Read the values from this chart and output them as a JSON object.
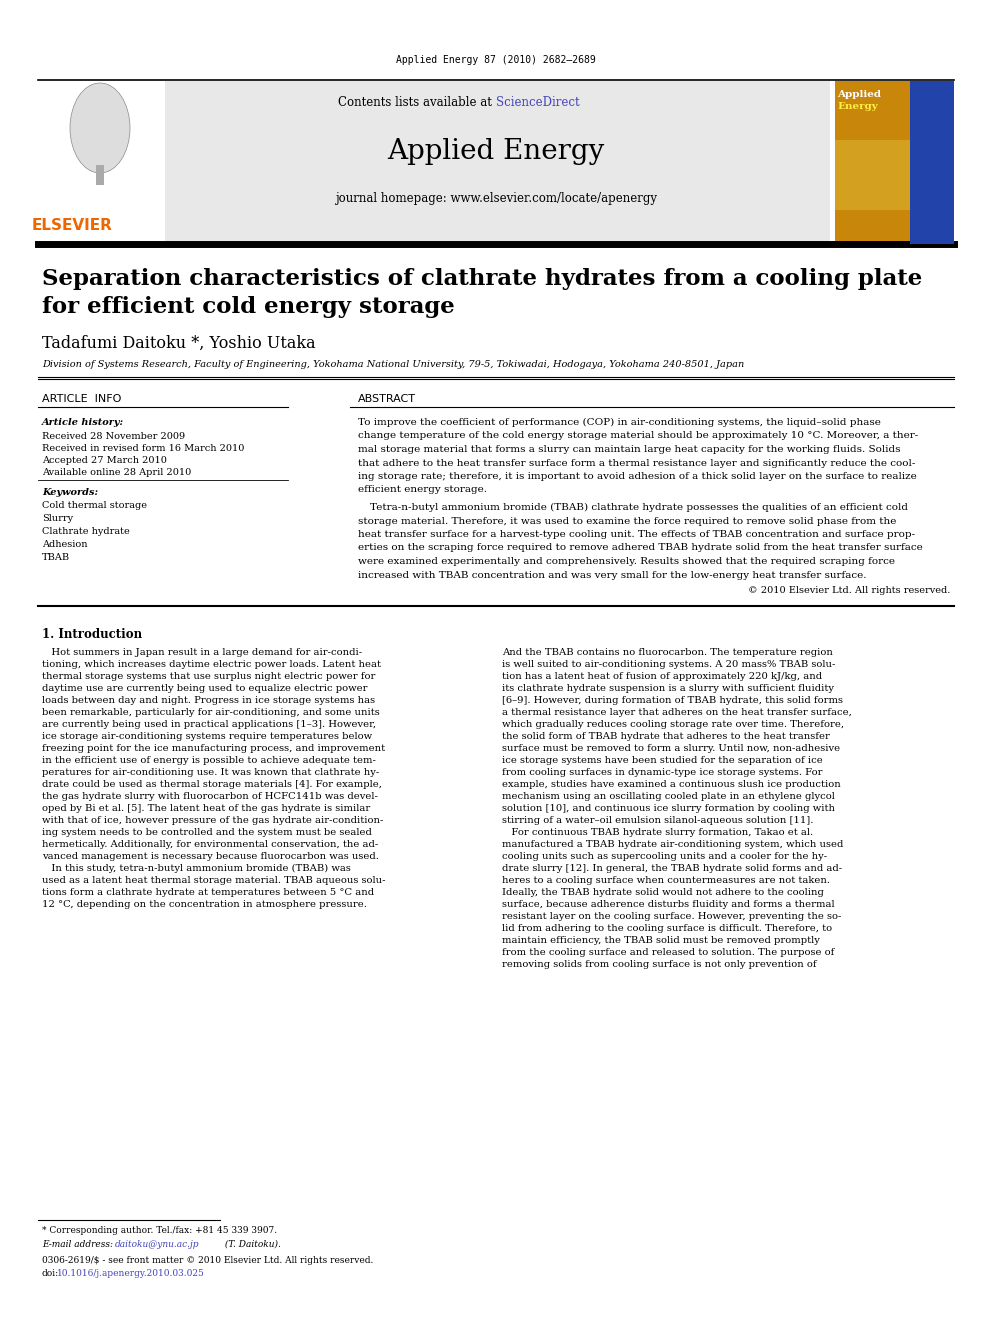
{
  "page_width": 9.92,
  "page_height": 13.23,
  "bg_color": "#ffffff",
  "top_citation": "Applied Energy 87 (2010) 2682–2689",
  "header_bg": "#e8e8e8",
  "header_contents": "Contents lists available at ScienceDirect",
  "header_journal": "Applied Energy",
  "header_homepage": "journal homepage: www.elsevier.com/locate/apenergy",
  "sciencedirect_color": "#4444bb",
  "elsevier_color": "#ee6600",
  "elsevier_text": "ELSEVIER",
  "article_title_line1": "Separation characteristics of clathrate hydrates from a cooling plate",
  "article_title_line2": "for efficient cold energy storage",
  "authors": "Tadafumi Daitoku *, Yoshio Utaka",
  "affiliation": "Division of Systems Research, Faculty of Engineering, Yokohama National University, 79-5, Tokiwadai, Hodogaya, Yokohama 240-8501, Japan",
  "article_info_header": "ARTICLE  INFO",
  "abstract_header": "ABSTRACT",
  "article_history_label": "Article history:",
  "received1": "Received 28 November 2009",
  "received2": "Received in revised form 16 March 2010",
  "accepted": "Accepted 27 March 2010",
  "available": "Available online 28 April 2010",
  "keywords_label": "Keywords:",
  "keywords": [
    "Cold thermal storage",
    "Slurry",
    "Clathrate hydrate",
    "Adhesion",
    "TBAB"
  ],
  "abstract_p1": "To improve the coefficient of performance (COP) in air-conditioning systems, the liquid–solid phase\nchange temperature of the cold energy storage material should be approximately 10 °C. Moreover, a ther-\nmal storage material that forms a slurry can maintain large heat capacity for the working fluids. Solids\nthat adhere to the heat transfer surface form a thermal resistance layer and significantly reduce the cool-\ning storage rate; therefore, it is important to avoid adhesion of a thick solid layer on the surface to realize\nefficient energy storage.",
  "abstract_p2": "Tetra-n-butyl ammonium bromide (TBAB) clathrate hydrate possesses the qualities of an efficient cold\nstorage material. Therefore, it was used to examine the force required to remove solid phase from the\nheat transfer surface for a harvest-type cooling unit. The effects of TBAB concentration and surface prop-\nerties on the scraping force required to remove adhered TBAB hydrate solid from the heat transfer surface\nwere examined experimentally and comprehensively. Results showed that the required scraping force\nincreased with TBAB concentration and was very small for the low-energy heat transfer surface.",
  "abstract_copyright": "© 2010 Elsevier Ltd. All rights reserved.",
  "section1_header": "1. Introduction",
  "section1_col1_lines": [
    "   Hot summers in Japan result in a large demand for air-condi-",
    "tioning, which increases daytime electric power loads. Latent heat",
    "thermal storage systems that use surplus night electric power for",
    "daytime use are currently being used to equalize electric power",
    "loads between day and night. Progress in ice storage systems has",
    "been remarkable, particularly for air-conditioning, and some units",
    "are currently being used in practical applications [1–3]. However,",
    "ice storage air-conditioning systems require temperatures below",
    "freezing point for the ice manufacturing process, and improvement",
    "in the efficient use of energy is possible to achieve adequate tem-",
    "peratures for air-conditioning use. It was known that clathrate hy-",
    "drate could be used as thermal storage materials [4]. For example,",
    "the gas hydrate slurry with fluorocarbon of HCFC141b was devel-",
    "oped by Bi et al. [5]. The latent heat of the gas hydrate is similar",
    "with that of ice, however pressure of the gas hydrate air-condition-",
    "ing system needs to be controlled and the system must be sealed",
    "hermetically. Additionally, for environmental conservation, the ad-",
    "vanced management is necessary because fluorocarbon was used.",
    "   In this study, tetra-n-butyl ammonium bromide (TBAB) was",
    "used as a latent heat thermal storage material. TBAB aqueous solu-",
    "tions form a clathrate hydrate at temperatures between 5 °C and",
    "12 °C, depending on the concentration in atmosphere pressure."
  ],
  "section1_col2_lines": [
    "And the TBAB contains no fluorocarbon. The temperature region",
    "is well suited to air-conditioning systems. A 20 mass% TBAB solu-",
    "tion has a latent heat of fusion of approximately 220 kJ/kg, and",
    "its clathrate hydrate suspension is a slurry with sufficient fluidity",
    "[6–9]. However, during formation of TBAB hydrate, this solid forms",
    "a thermal resistance layer that adheres on the heat transfer surface,",
    "which gradually reduces cooling storage rate over time. Therefore,",
    "the solid form of TBAB hydrate that adheres to the heat transfer",
    "surface must be removed to form a slurry. Until now, non-adhesive",
    "ice storage systems have been studied for the separation of ice",
    "from cooling surfaces in dynamic-type ice storage systems. For",
    "example, studies have examined a continuous slush ice production",
    "mechanism using an oscillating cooled plate in an ethylene glycol",
    "solution [10], and continuous ice slurry formation by cooling with",
    "stirring of a water–oil emulsion silanol-aqueous solution [11].",
    "   For continuous TBAB hydrate slurry formation, Takao et al.",
    "manufactured a TBAB hydrate air-conditioning system, which used",
    "cooling units such as supercooling units and a cooler for the hy-",
    "drate slurry [12]. In general, the TBAB hydrate solid forms and ad-",
    "heres to a cooling surface when countermeasures are not taken.",
    "Ideally, the TBAB hydrate solid would not adhere to the cooling",
    "surface, because adherence disturbs fluidity and forms a thermal",
    "resistant layer on the cooling surface. However, preventing the so-",
    "lid from adhering to the cooling surface is difficult. Therefore, to",
    "maintain efficiency, the TBAB solid must be removed promptly",
    "from the cooling surface and released to solution. The purpose of",
    "removing solids from cooling surface is not only prevention of"
  ],
  "footnote_star": "* Corresponding author. Tel./fax: +81 45 339 3907.",
  "footnote_email_prefix": "E-mail address: ",
  "footnote_email_link": "daitoku@ynu.ac.jp",
  "footnote_email_suffix": " (T. Daitoku).",
  "footnote_bottom": "0306-2619/$ - see front matter © 2010 Elsevier Ltd. All rights reserved.",
  "footnote_doi_prefix": "doi:",
  "footnote_doi_link": "10.1016/j.apenergy.2010.03.025",
  "email_color": "#4444bb",
  "doi_color": "#4444bb",
  "cover_bg1": "#c8860a",
  "cover_bg2": "#d4a020",
  "cover_blue": "#2244aa"
}
